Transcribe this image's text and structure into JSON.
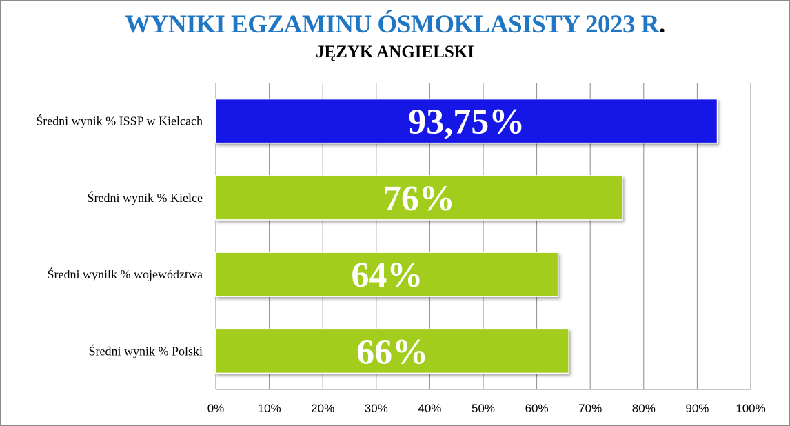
{
  "chart_data": {
    "type": "bar",
    "orientation": "horizontal",
    "title": "WYNIKI EGZAMINU ÓSMOKLASISTY 2023 R",
    "title_suffix": ".",
    "subtitle": "JĘZYK ANGIELSKI",
    "categories": [
      "Średni wynik % ISSP w Kielcach",
      "Średni wynik % Kielce",
      "Średni wynilk % województwa",
      "Średni wynik % Polski"
    ],
    "values": [
      93.75,
      76,
      64,
      66
    ],
    "data_labels": [
      "93,75%",
      "76%",
      "64%",
      "66%"
    ],
    "bar_colors": [
      "#1212e6",
      "#a2cd1e",
      "#a2cd1e",
      "#a2cd1e"
    ],
    "xlim": [
      0,
      100
    ],
    "x_ticks": [
      "0%",
      "10%",
      "20%",
      "30%",
      "40%",
      "50%",
      "60%",
      "70%",
      "80%",
      "90%",
      "100%"
    ],
    "grid": "vertical",
    "legend": "none",
    "title_color": "#1f77c4"
  }
}
